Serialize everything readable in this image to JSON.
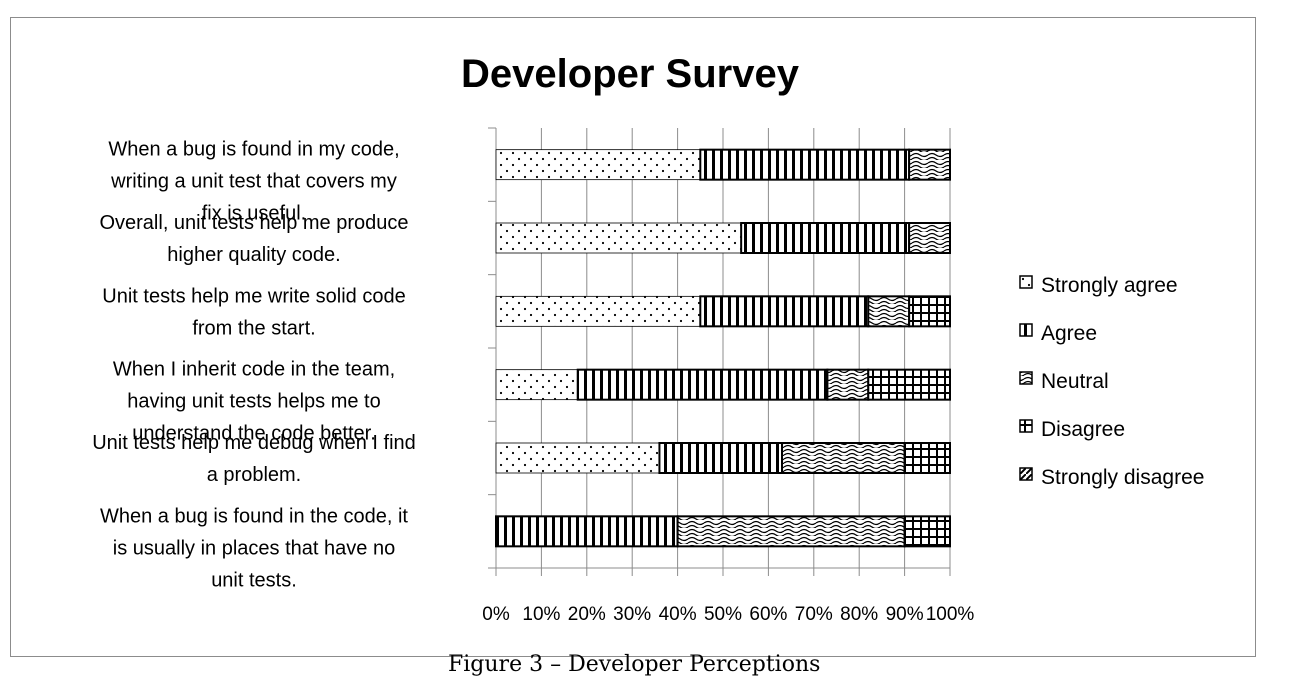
{
  "chart_data": {
    "type": "bar",
    "orientation": "horizontal",
    "stacked": "100%",
    "title": "Developer Survey",
    "categories": [
      "When a bug is found in my code, writing a unit test that covers my fix is useful.",
      "Overall, unit tests help me produce higher quality code.",
      "Unit tests help me write solid code from the start.",
      "When I inherit code in the team, having unit tests helps me to understand the code better.",
      "Unit tests help me debug when I find a problem.",
      "When a bug is found in the code, it is usually in places that have no unit tests."
    ],
    "series": [
      {
        "name": "Strongly agree",
        "values": [
          45,
          54,
          45,
          18,
          36,
          0
        ]
      },
      {
        "name": "Agree",
        "values": [
          46,
          37,
          37,
          55,
          27,
          40
        ]
      },
      {
        "name": "Neutral",
        "values": [
          9,
          9,
          9,
          9,
          27,
          50
        ]
      },
      {
        "name": "Disagree",
        "values": [
          0,
          0,
          9,
          18,
          10,
          10
        ]
      },
      {
        "name": "Strongly disagree",
        "values": [
          0,
          0,
          0,
          0,
          0,
          0
        ]
      }
    ],
    "xticks": [
      "0%",
      "10%",
      "20%",
      "30%",
      "40%",
      "50%",
      "60%",
      "70%",
      "80%",
      "90%",
      "100%"
    ],
    "xlim": [
      0,
      100
    ],
    "grid": true,
    "legend_position": "right"
  },
  "caption": "Figure 3 – Developer Perceptions"
}
